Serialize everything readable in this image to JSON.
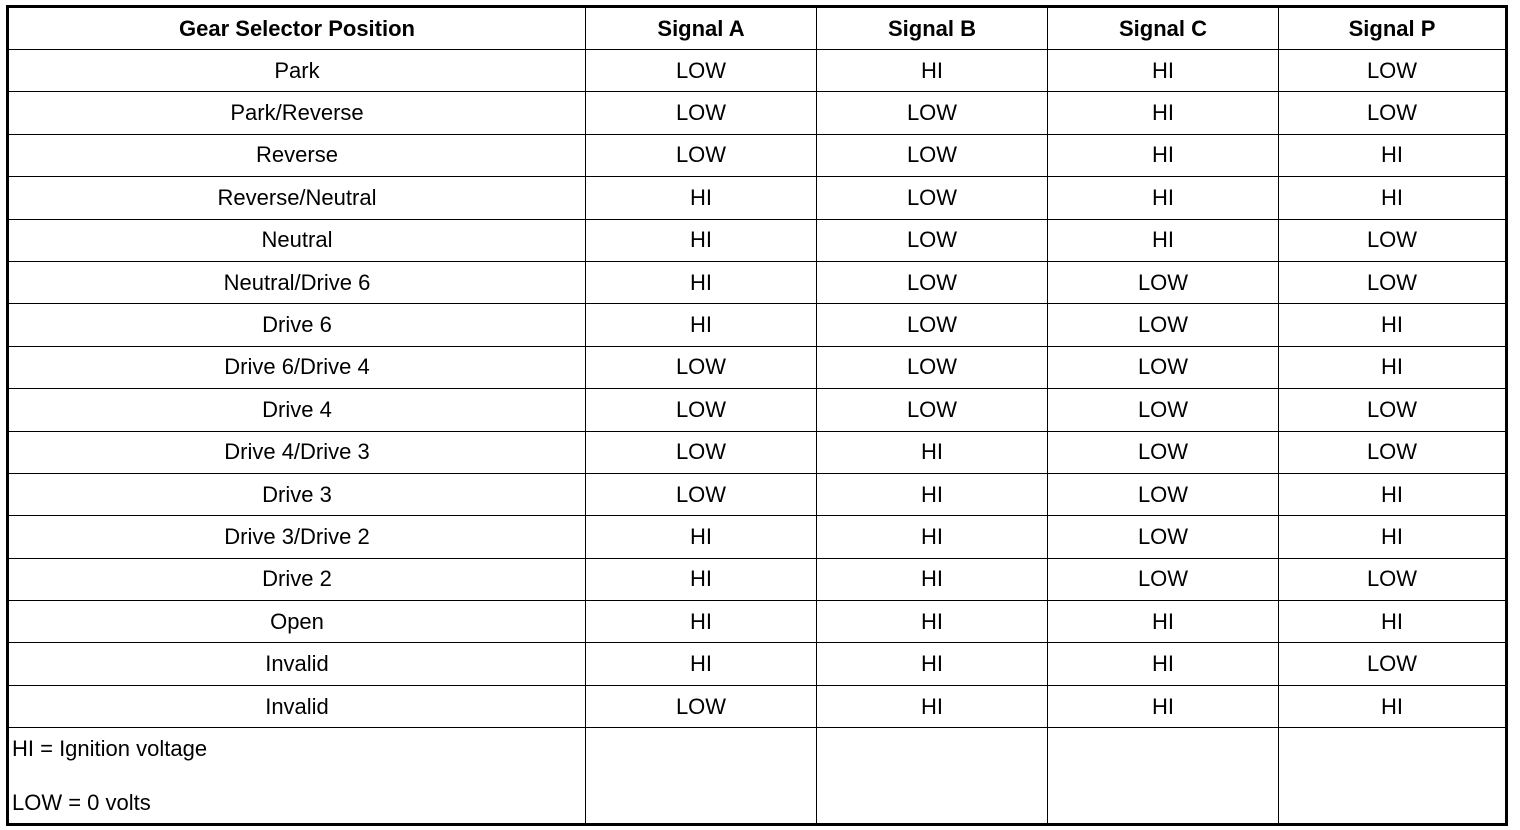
{
  "headers": [
    "Gear Selector Position",
    "Signal A",
    "Signal B",
    "Signal C",
    "Signal P"
  ],
  "rows": [
    [
      "Park",
      "LOW",
      "HI",
      "HI",
      "LOW"
    ],
    [
      "Park/Reverse",
      "LOW",
      "LOW",
      "HI",
      "LOW"
    ],
    [
      "Reverse",
      "LOW",
      "LOW",
      "HI",
      "HI"
    ],
    [
      "Reverse/Neutral",
      "HI",
      "LOW",
      "HI",
      "HI"
    ],
    [
      "Neutral",
      "HI",
      "LOW",
      "HI",
      "LOW"
    ],
    [
      "Neutral/Drive 6",
      "HI",
      "LOW",
      "LOW",
      "LOW"
    ],
    [
      "Drive 6",
      "HI",
      "LOW",
      "LOW",
      "HI"
    ],
    [
      "Drive 6/Drive 4",
      "LOW",
      "LOW",
      "LOW",
      "HI"
    ],
    [
      "Drive 4",
      "LOW",
      "LOW",
      "LOW",
      "LOW"
    ],
    [
      "Drive 4/Drive 3",
      "LOW",
      "HI",
      "LOW",
      "LOW"
    ],
    [
      "Drive 3",
      "LOW",
      "HI",
      "LOW",
      "HI"
    ],
    [
      "Drive 3/Drive 2",
      "HI",
      "HI",
      "LOW",
      "HI"
    ],
    [
      "Drive 2",
      "HI",
      "HI",
      "LOW",
      "LOW"
    ],
    [
      "Open",
      "HI",
      "HI",
      "HI",
      "HI"
    ],
    [
      "Invalid",
      "HI",
      "HI",
      "HI",
      "LOW"
    ],
    [
      "Invalid",
      "LOW",
      "HI",
      "HI",
      "HI"
    ]
  ],
  "legend": {
    "hi": "HI = Ignition voltage",
    "low": "LOW = 0 volts"
  }
}
